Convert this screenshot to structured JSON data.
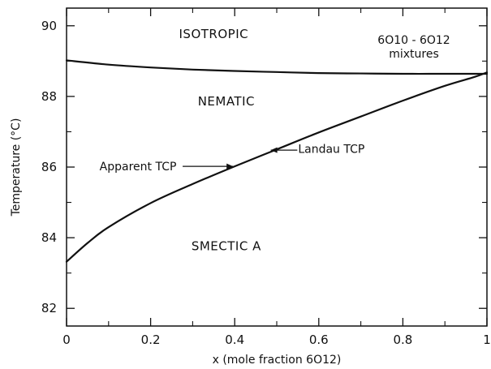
{
  "chart_data": {
    "type": "line",
    "title_lines": [
      "6O10 - 6O12",
      "mixtures"
    ],
    "xlabel": "x (mole fraction 6O12)",
    "ylabel": "Temperature (°C)",
    "xlim": [
      0,
      1
    ],
    "ylim": [
      81.5,
      90.5
    ],
    "x_ticks": [
      0,
      0.2,
      0.4,
      0.6,
      0.8,
      1
    ],
    "x_tick_labels": [
      "0",
      "0.2",
      "0.4",
      "0.6",
      "0.8",
      "1"
    ],
    "y_ticks": [
      82,
      84,
      86,
      88,
      90
    ],
    "y_tick_labels": [
      "82",
      "84",
      "86",
      "88",
      "90"
    ],
    "series": [
      {
        "x": [
          0,
          0.1,
          0.2,
          0.3,
          0.4,
          0.5,
          0.6,
          0.7,
          0.8,
          0.9,
          1.0
        ],
        "y": [
          89.02,
          88.9,
          88.82,
          88.76,
          88.72,
          88.69,
          88.66,
          88.65,
          88.64,
          88.64,
          88.64
        ]
      },
      {
        "x": [
          0,
          0.05,
          0.1,
          0.2,
          0.3,
          0.4,
          0.5,
          0.6,
          0.7,
          0.8,
          0.9,
          0.97,
          1.0
        ],
        "y": [
          83.32,
          83.85,
          84.3,
          84.98,
          85.52,
          86.02,
          86.5,
          86.98,
          87.43,
          87.88,
          88.3,
          88.55,
          88.68
        ]
      }
    ],
    "regions": [
      {
        "label": "ISOTROPIC",
        "x": 0.35,
        "y": 89.65
      },
      {
        "label": "NEMATIC",
        "x": 0.38,
        "y": 87.75
      },
      {
        "label": "SMECTIC A",
        "x": 0.38,
        "y": 83.65
      }
    ],
    "annotations": [
      {
        "label": "Apparent TCP",
        "point": [
          0.4,
          86.02
        ],
        "text_x": 0.17,
        "text_y": 86.02
      },
      {
        "label": "Landau TCP",
        "point": [
          0.48,
          86.48
        ],
        "text_x": 0.63,
        "text_y": 86.52
      }
    ],
    "legend": "top-right"
  }
}
